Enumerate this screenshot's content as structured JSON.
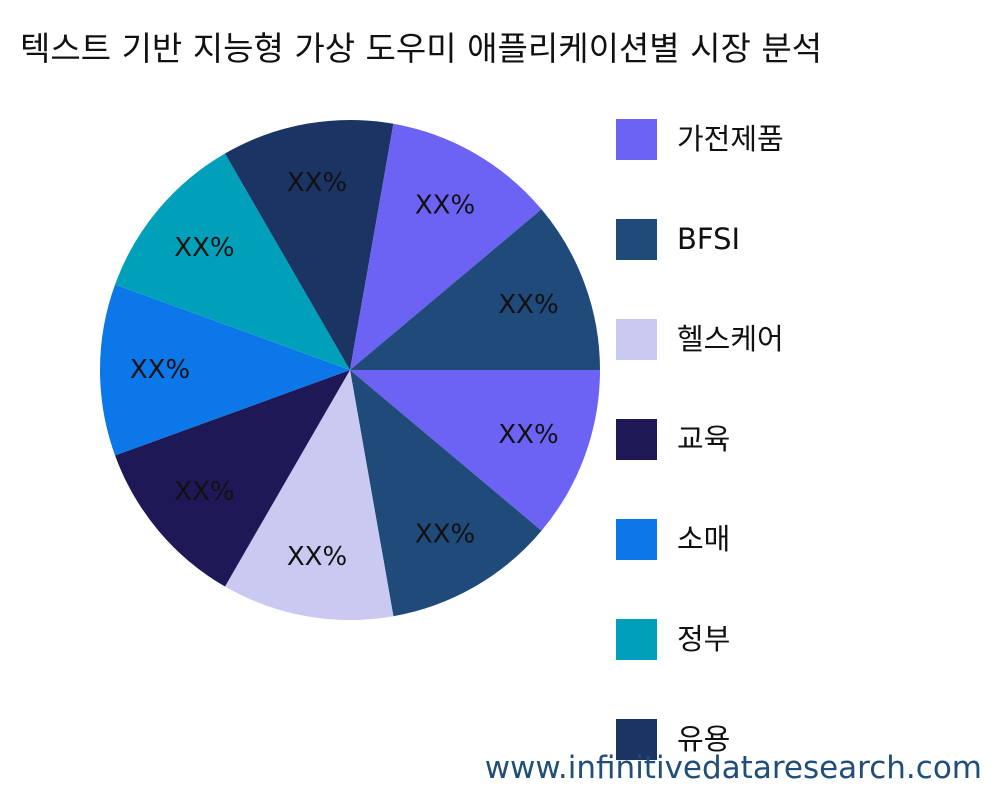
{
  "title": "텍스트 기반 지능형 가상 도우미 애플리케이션별 시장 분석",
  "watermark": "www.infinitivedataresearch.com",
  "chart_data": {
    "type": "pie",
    "title": "텍스트 기반 지능형 가상 도우미 애플리케이션별 시장 분석",
    "legend_position": "right",
    "categories": [
      "가전제품",
      "BFSI",
      "헬스케어",
      "교육",
      "소매",
      "정부",
      "유용"
    ],
    "colors": [
      "#6c63f4",
      "#1f4a7a",
      "#c9c9f1",
      "#1e1856",
      "#0b77e8",
      "#00a0bb",
      "#1b3463"
    ],
    "slices": [
      {
        "category": "가전제품",
        "value": 1,
        "label": "XX%",
        "color": "#6c63f4"
      },
      {
        "category": "BFSI",
        "value": 1,
        "label": "XX%",
        "color": "#1f4a7a"
      },
      {
        "category": "헬스케어",
        "value": 1,
        "label": "XX%",
        "color": "#c9c9f1"
      },
      {
        "category": "교육",
        "value": 1,
        "label": "XX%",
        "color": "#1e1856"
      },
      {
        "category": "소매",
        "value": 1,
        "label": "XX%",
        "color": "#0b77e8"
      },
      {
        "category": "정부",
        "value": 1,
        "label": "XX%",
        "color": "#00a0bb"
      },
      {
        "category": "유용",
        "value": 1,
        "label": "XX%",
        "color": "#1b3463"
      },
      {
        "category": "가전제품",
        "value": 1,
        "label": "XX%",
        "color": "#6c63f4"
      },
      {
        "category": "BFSI",
        "value": 1,
        "label": "XX%",
        "color": "#1f4a7a"
      }
    ]
  }
}
